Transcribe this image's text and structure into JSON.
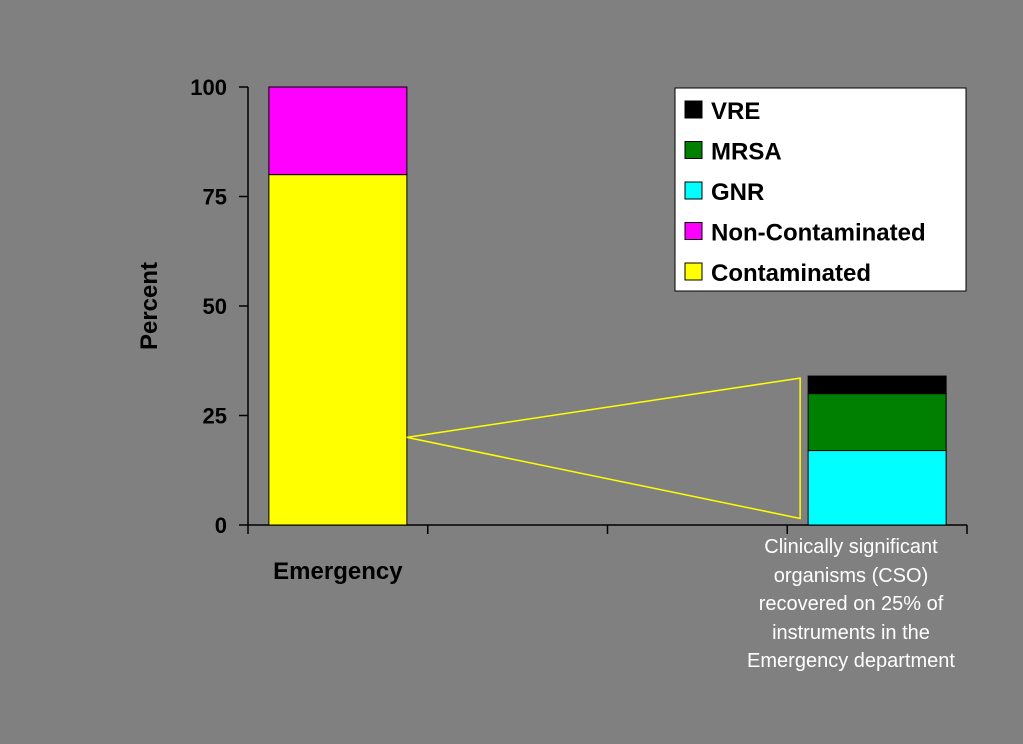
{
  "chart_data": {
    "type": "bar",
    "stacked": true,
    "categories": [
      "Emergency",
      ""
    ],
    "xlabel": "",
    "ylabel": "Percent",
    "ylim": [
      0,
      100
    ],
    "yticks": [
      0,
      25,
      50,
      75,
      100
    ],
    "grid": false,
    "legend_position": "top-right",
    "series": [
      {
        "name": "Contaminated",
        "color": "#ffff00",
        "values": [
          80,
          0
        ]
      },
      {
        "name": "Non-Contaminated",
        "color": "#ff00ff",
        "values": [
          20,
          0
        ]
      },
      {
        "name": "GNR",
        "color": "#00ffff",
        "values": [
          0,
          17
        ]
      },
      {
        "name": "MRSA",
        "color": "#008000",
        "values": [
          0,
          13
        ]
      },
      {
        "name": "VRE",
        "color": "#000000",
        "values": [
          0,
          4
        ]
      }
    ],
    "legend_order": [
      "VRE",
      "MRSA",
      "GNR",
      "Non-Contaminated",
      "Contaminated"
    ],
    "annotation_lines": [
      "Clinically significant",
      "organisms (CSO)",
      "recovered on 25% of",
      "instruments in the",
      "Emergency department"
    ],
    "zoom_connector_color": "#ffff00"
  }
}
